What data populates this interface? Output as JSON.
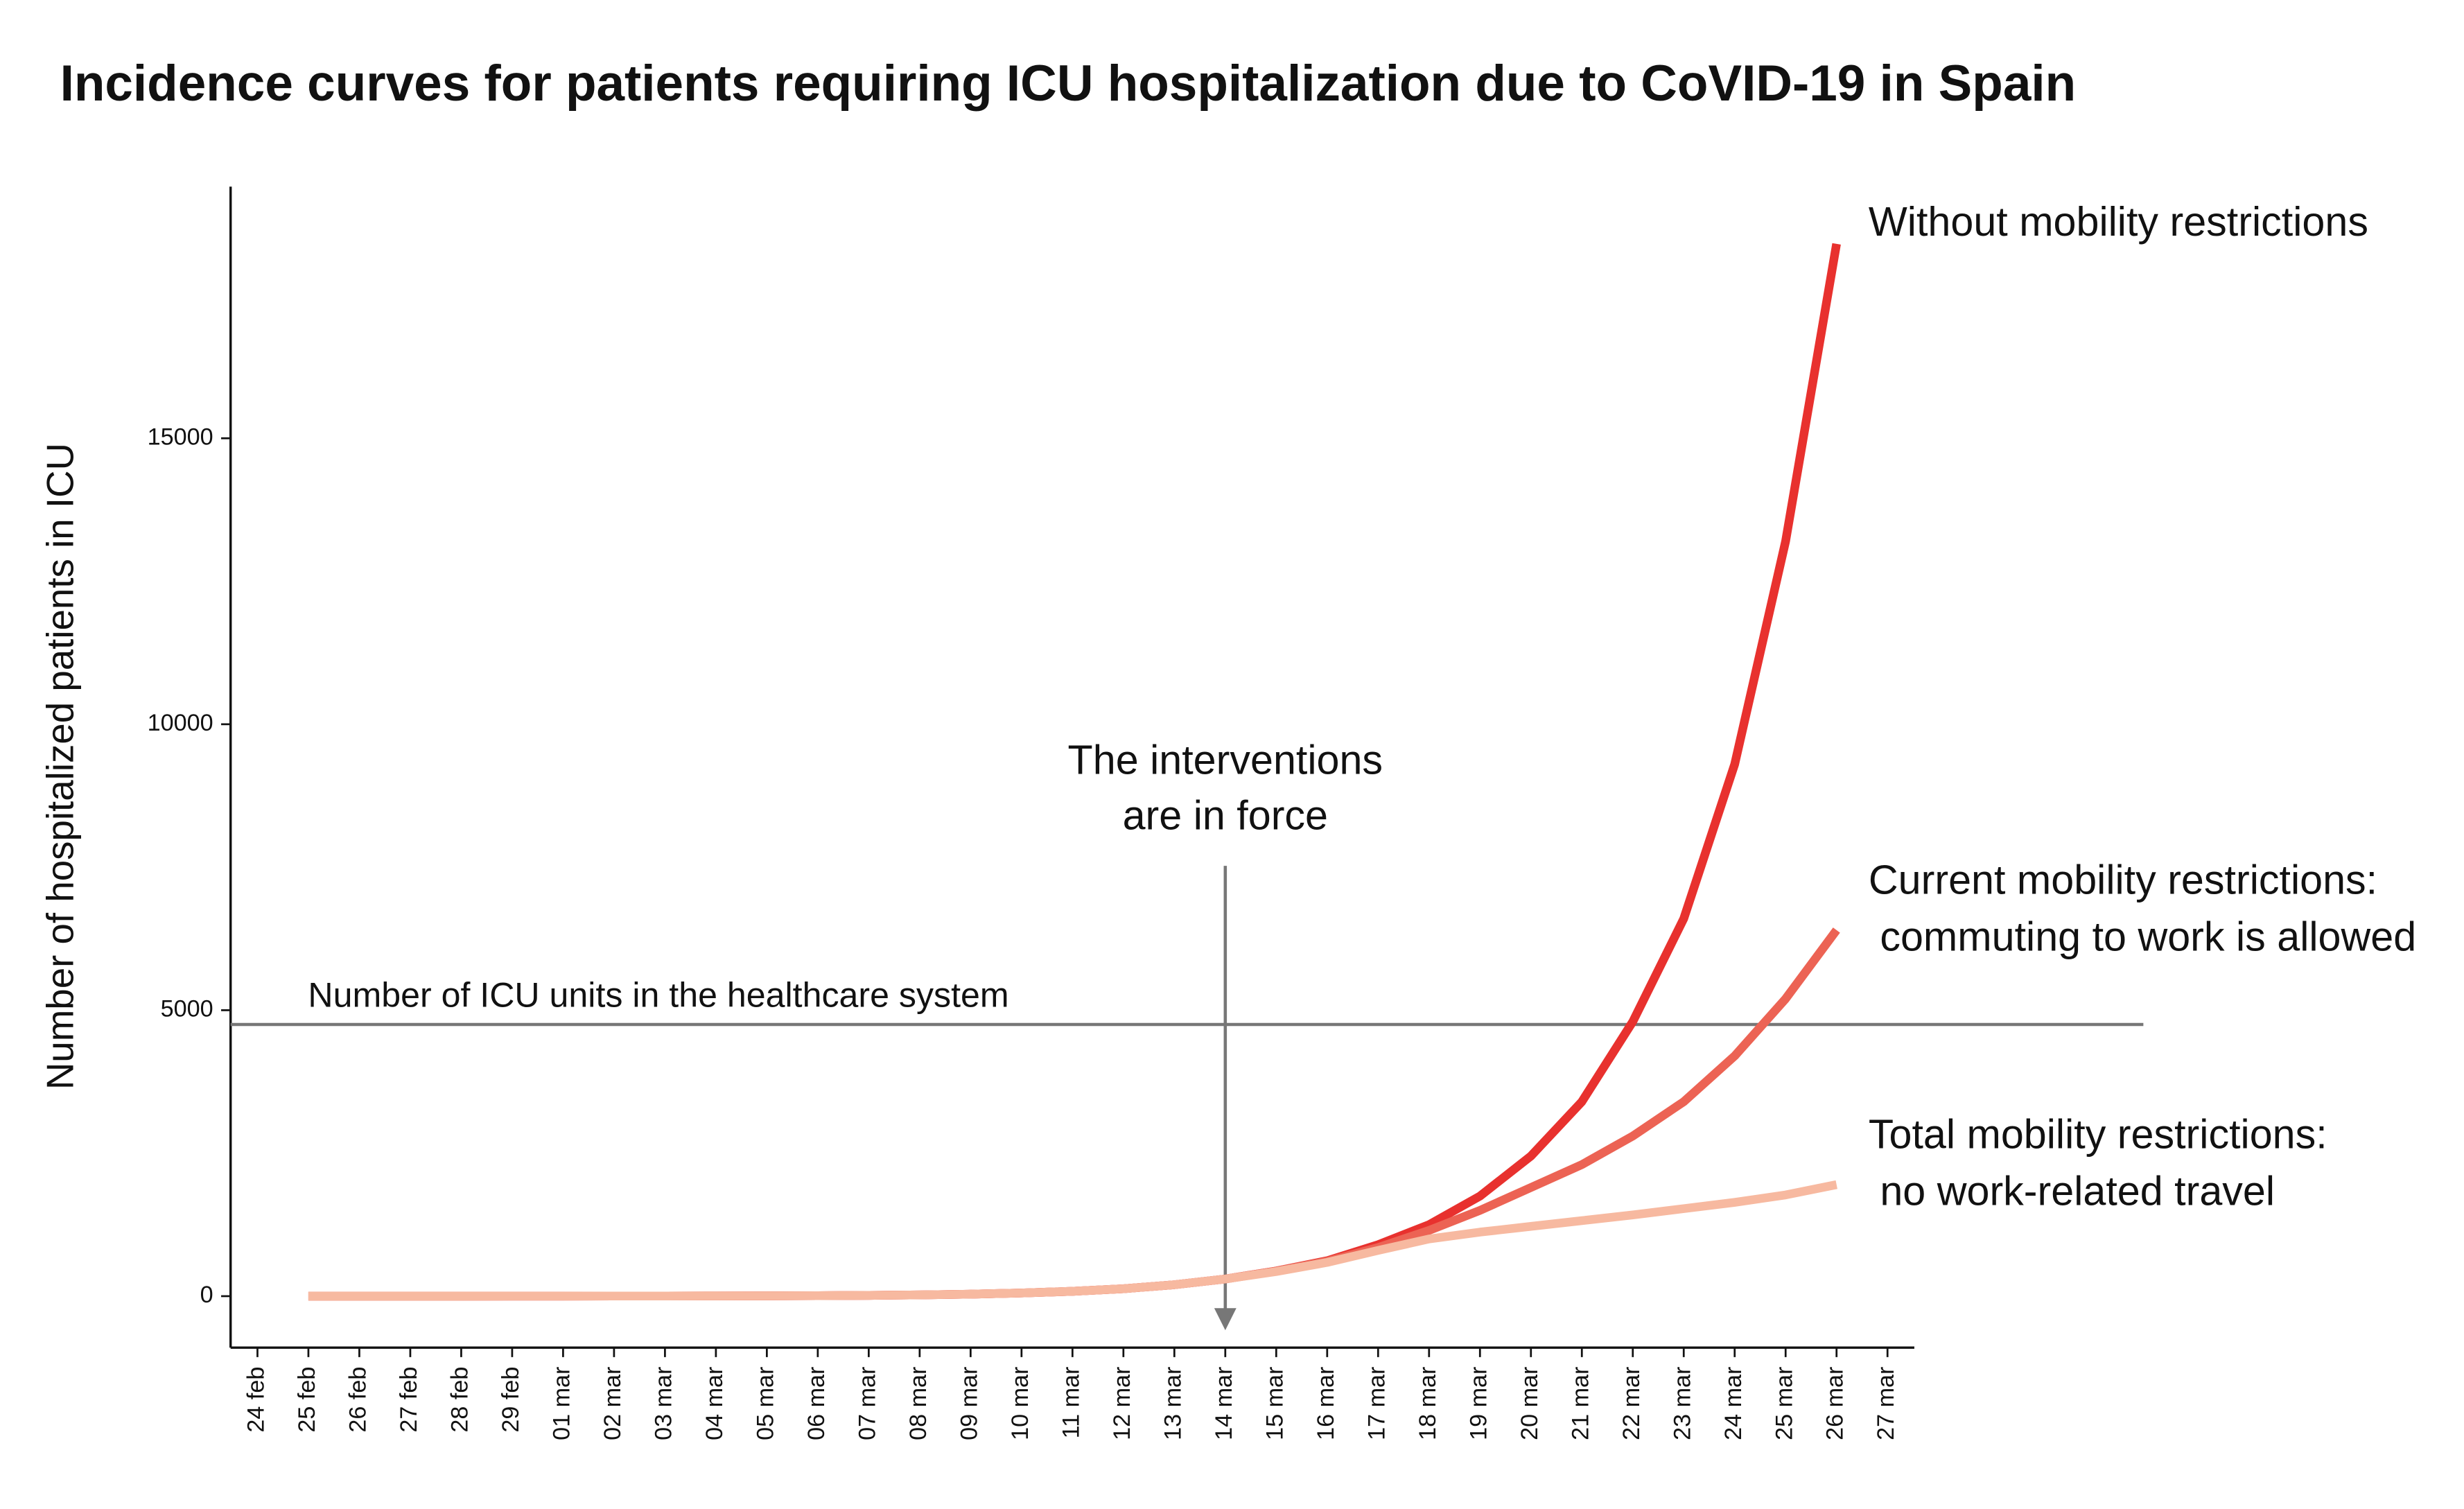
{
  "chart_data": {
    "type": "line",
    "title": "Incidence curves for patients requiring ICU hospitalization due to CoVID-19 in Spain",
    "y_label": "Number of hospitalized patients in ICU",
    "categories": [
      "24 feb",
      "25 feb",
      "26 feb",
      "27 feb",
      "28 feb",
      "29 feb",
      "01 mar",
      "02 mar",
      "03 mar",
      "04 mar",
      "05 mar",
      "06 mar",
      "07 mar",
      "08 mar",
      "09 mar",
      "10 mar",
      "11 mar",
      "12 mar",
      "13 mar",
      "14 mar",
      "15 mar",
      "16 mar",
      "17 mar",
      "18 mar",
      "19 mar",
      "20 mar",
      "21 mar",
      "22 mar",
      "23 mar",
      "24 mar",
      "25 mar",
      "26 mar",
      "27 mar"
    ],
    "series": [
      {
        "name": "Without mobility restrictions",
        "color": "#e8312e",
        "values": [
          null,
          0,
          0,
          0,
          0,
          1,
          1,
          2,
          3,
          4,
          6,
          9,
          14,
          22,
          35,
          55,
          85,
          130,
          200,
          300,
          440,
          620,
          900,
          1250,
          1750,
          2450,
          3400,
          4800,
          6600,
          9300,
          13200,
          18400,
          null
        ]
      },
      {
        "name": "Current mobility restrictions: commuting to work is allowed",
        "color": "#ec6354",
        "values": [
          null,
          0,
          0,
          0,
          0,
          1,
          1,
          2,
          3,
          4,
          6,
          9,
          14,
          22,
          35,
          55,
          85,
          130,
          200,
          300,
          440,
          610,
          850,
          1150,
          1500,
          1900,
          2300,
          2800,
          3400,
          4200,
          5200,
          6400,
          null
        ]
      },
      {
        "name": "Total mobility restrictions: no work-related travel",
        "color": "#f7b9a0",
        "values": [
          null,
          0,
          0,
          0,
          0,
          1,
          1,
          2,
          3,
          4,
          6,
          9,
          14,
          22,
          35,
          55,
          85,
          130,
          200,
          300,
          430,
          590,
          800,
          1000,
          1120,
          1220,
          1320,
          1420,
          1530,
          1640,
          1770,
          1950,
          null
        ]
      }
    ],
    "ylim": [
      -900,
      19400
    ],
    "yticks": [
      0,
      5000,
      10000,
      15000
    ],
    "reference_line": {
      "value": 4750,
      "label": "Number of ICU units in the healthcare system"
    },
    "annotation": {
      "x": "14 mar",
      "lines": [
        "The interventions",
        "are in force"
      ]
    }
  }
}
